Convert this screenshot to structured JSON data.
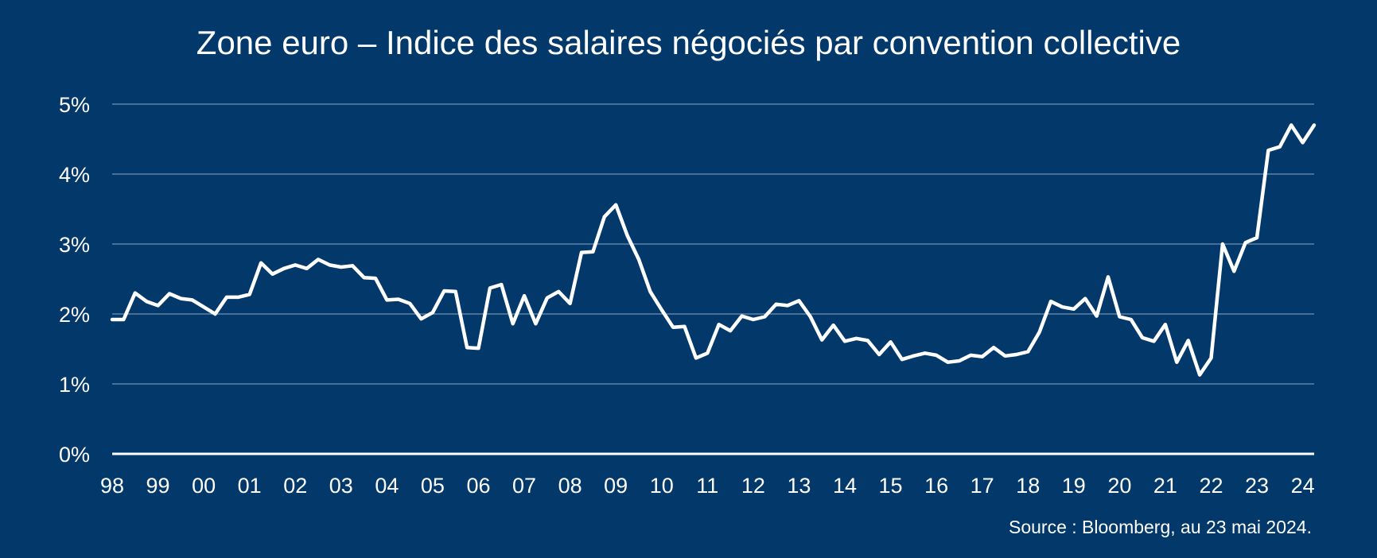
{
  "chart_data": {
    "type": "line",
    "title": "Zone euro – Indice des salaires négociés par convention collective",
    "xlabel": "",
    "ylabel": "",
    "ylim": [
      0,
      5
    ],
    "xlim": [
      1998.0,
      2024.25
    ],
    "y_ticks": [
      "0%",
      "1%",
      "2%",
      "3%",
      "4%",
      "5%"
    ],
    "x_ticks": [
      "98",
      "99",
      "00",
      "01",
      "02",
      "03",
      "04",
      "05",
      "06",
      "07",
      "08",
      "09",
      "10",
      "11",
      "12",
      "13",
      "14",
      "15",
      "16",
      "17",
      "18",
      "19",
      "20",
      "21",
      "22",
      "23",
      "24"
    ],
    "x_tick_values": [
      1998,
      1999,
      2000,
      2001,
      2002,
      2003,
      2004,
      2005,
      2006,
      2007,
      2008,
      2009,
      2010,
      2011,
      2012,
      2013,
      2014,
      2015,
      2016,
      2017,
      2018,
      2019,
      2020,
      2021,
      2022,
      2023,
      2024
    ],
    "grid": true,
    "legend": "none",
    "colors": {
      "background": "#02386a",
      "line": "#ffffff",
      "grid": "#8fa8c2"
    },
    "series": [
      {
        "x": [
          1998.0,
          1998.25,
          1998.5,
          1998.75,
          1999.0,
          1999.25,
          1999.5,
          1999.75,
          2000.0,
          2000.25,
          2000.5,
          2000.75,
          2001.0,
          2001.25,
          2001.5,
          2001.75,
          2002.0,
          2002.25,
          2002.5,
          2002.75,
          2003.0,
          2003.25,
          2003.5,
          2003.75,
          2004.0,
          2004.25,
          2004.5,
          2004.75,
          2005.0,
          2005.25,
          2005.5,
          2005.75,
          2006.0,
          2006.25,
          2006.5,
          2006.75,
          2007.0,
          2007.25,
          2007.5,
          2007.75,
          2008.0,
          2008.25,
          2008.5,
          2008.75,
          2009.0,
          2009.25,
          2009.5,
          2009.75,
          2010.0,
          2010.25,
          2010.5,
          2010.75,
          2011.0,
          2011.25,
          2011.5,
          2011.75,
          2012.0,
          2012.25,
          2012.5,
          2012.75,
          2013.0,
          2013.25,
          2013.5,
          2013.75,
          2014.0,
          2014.25,
          2014.5,
          2014.75,
          2015.0,
          2015.25,
          2015.5,
          2015.75,
          2016.0,
          2016.25,
          2016.5,
          2016.75,
          2017.0,
          2017.25,
          2017.5,
          2017.75,
          2018.0,
          2018.25,
          2018.5,
          2018.75,
          2019.0,
          2019.25,
          2019.5,
          2019.75,
          2020.0,
          2020.25,
          2020.5,
          2020.75,
          2021.0,
          2021.25,
          2021.5,
          2021.75,
          2022.0,
          2022.25,
          2022.5,
          2022.75,
          2023.0,
          2023.25,
          2023.5,
          2023.75,
          2024.0,
          2024.25
        ],
        "values": [
          1.92,
          1.92,
          2.3,
          2.18,
          2.12,
          2.29,
          2.22,
          2.2,
          2.1,
          2.0,
          2.24,
          2.24,
          2.28,
          2.73,
          2.57,
          2.65,
          2.7,
          2.65,
          2.78,
          2.7,
          2.67,
          2.69,
          2.52,
          2.51,
          2.2,
          2.21,
          2.15,
          1.93,
          2.02,
          2.33,
          2.32,
          1.52,
          1.51,
          2.37,
          2.42,
          1.86,
          2.26,
          1.86,
          2.23,
          2.32,
          2.15,
          2.88,
          2.89,
          3.39,
          3.56,
          3.12,
          2.78,
          2.32,
          2.06,
          1.81,
          1.82,
          1.37,
          1.44,
          1.85,
          1.76,
          1.97,
          1.92,
          1.96,
          2.14,
          2.12,
          2.19,
          1.96,
          1.63,
          1.84,
          1.61,
          1.65,
          1.62,
          1.42,
          1.6,
          1.35,
          1.4,
          1.44,
          1.41,
          1.31,
          1.33,
          1.41,
          1.39,
          1.52,
          1.4,
          1.42,
          1.46,
          1.74,
          2.18,
          2.1,
          2.07,
          2.22,
          1.97,
          2.53,
          1.96,
          1.92,
          1.66,
          1.61,
          1.85,
          1.31,
          1.62,
          1.13,
          1.37,
          3.0,
          2.61,
          3.02,
          3.09,
          4.34,
          4.39,
          4.7,
          4.45,
          4.7
        ]
      }
    ]
  },
  "source": "Source : Bloomberg, au 23 mai 2024."
}
